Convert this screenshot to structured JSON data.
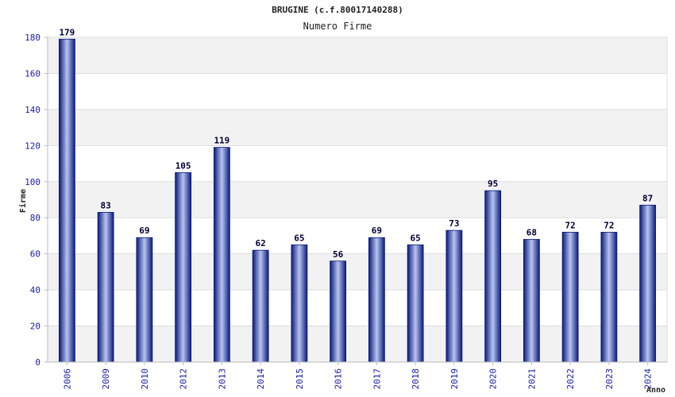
{
  "chart_data": {
    "type": "bar",
    "title": "BRUGINE (c.f.80017140288)",
    "subtitle": "Numero Firme",
    "xlabel": "Anno",
    "ylabel": "Firme",
    "categories": [
      "2006",
      "2009",
      "2010",
      "2012",
      "2013",
      "2014",
      "2015",
      "2016",
      "2017",
      "2018",
      "2019",
      "2020",
      "2021",
      "2022",
      "2023",
      "2024"
    ],
    "values": [
      179,
      83,
      69,
      105,
      119,
      62,
      65,
      56,
      69,
      65,
      73,
      95,
      68,
      72,
      72,
      87
    ],
    "ylim": [
      0,
      180
    ],
    "yticks": [
      0,
      20,
      40,
      60,
      80,
      100,
      120,
      140,
      160,
      180
    ],
    "grid": true,
    "colors": {
      "bar_dark": "#0a1a7a",
      "bar_light": "#b8c4f0",
      "band": "#f2f2f2",
      "grid": "#dddddd",
      "axis": "#bbbbbb"
    }
  }
}
